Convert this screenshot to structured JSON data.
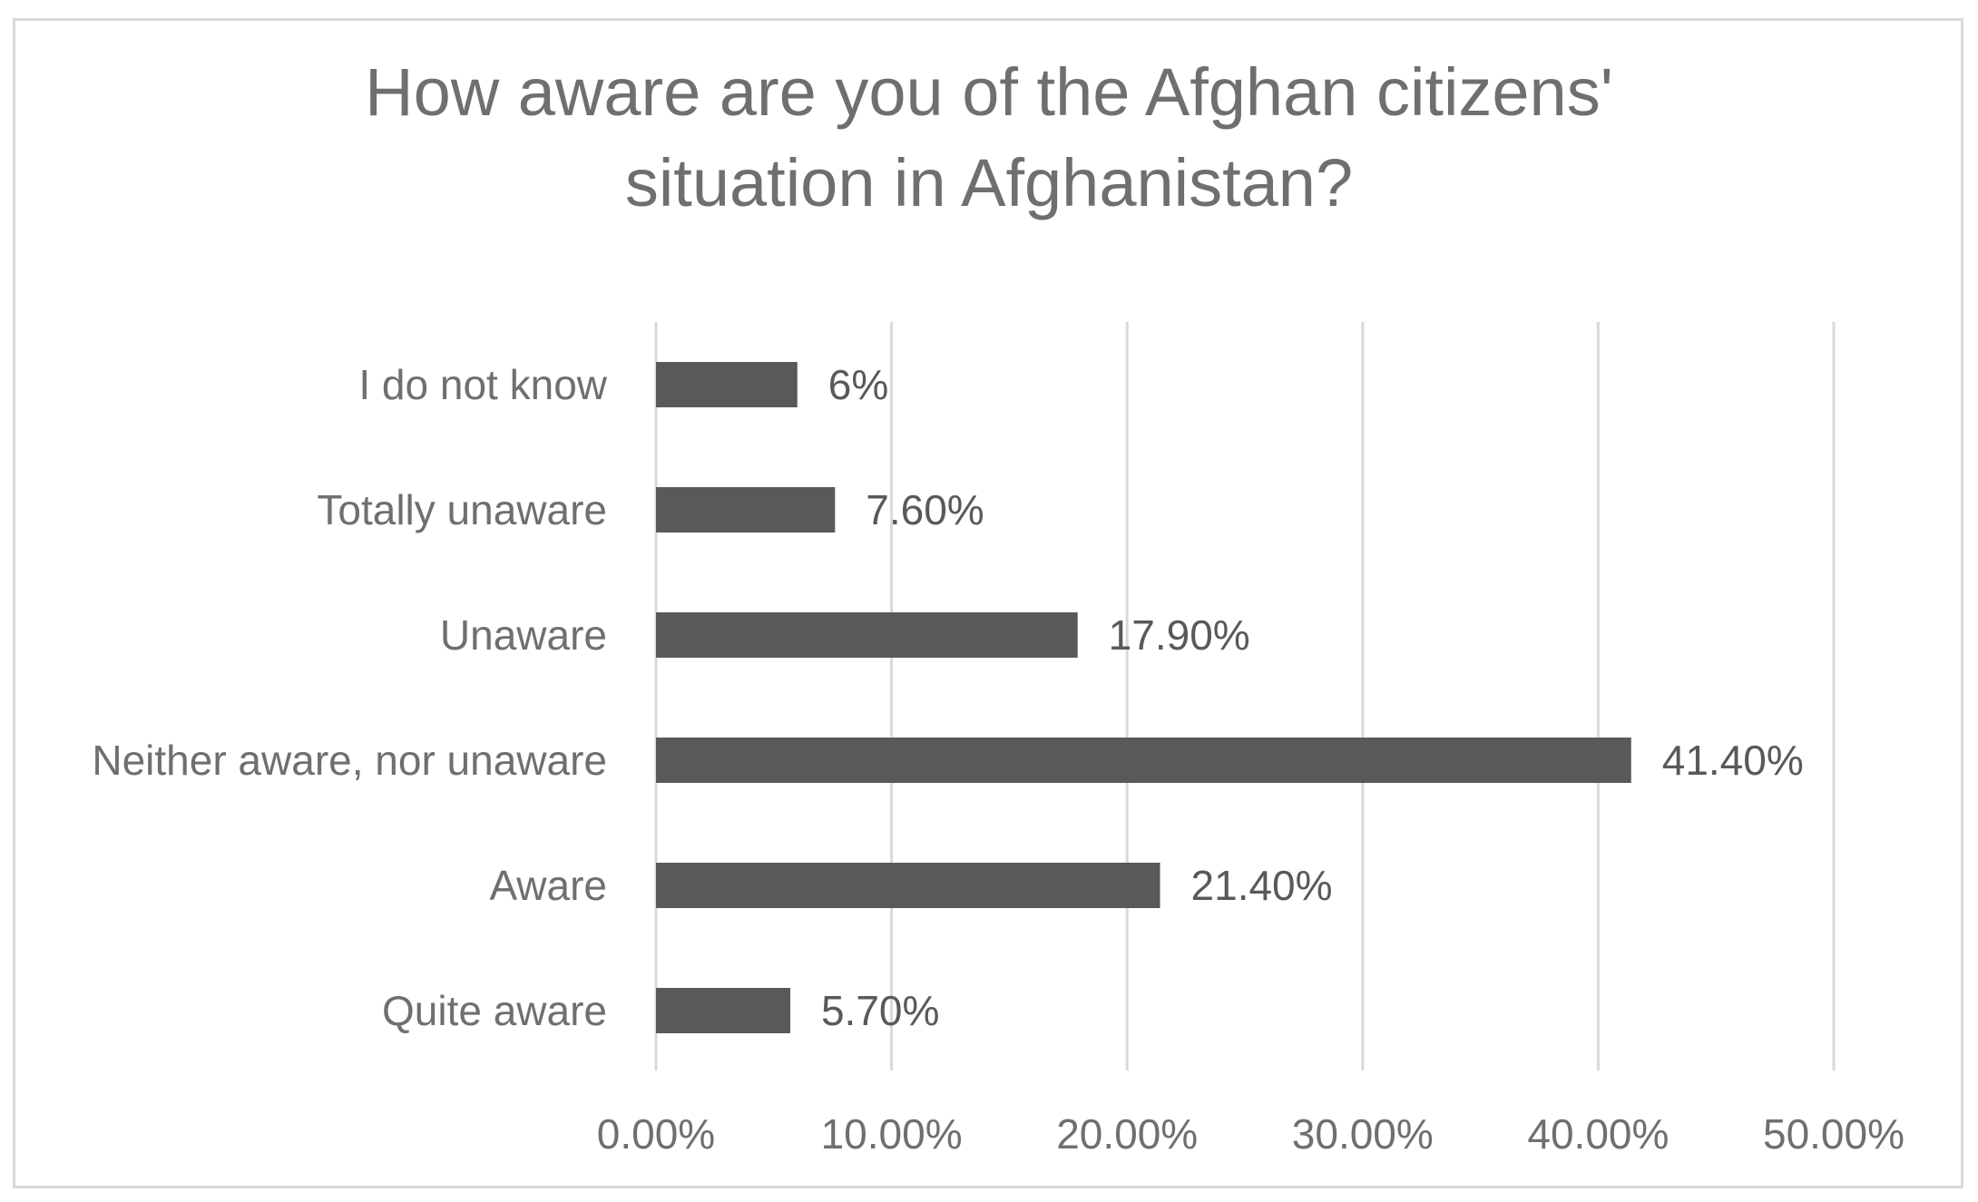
{
  "chart_data": {
    "type": "bar",
    "orientation": "horizontal",
    "title": "How aware are you of the Afghan citizens' situation in Afghanistan?",
    "title_lines": [
      "How aware are you of the Afghan citizens'",
      "situation in Afghanistan?"
    ],
    "categories": [
      "I do not know",
      "Totally unaware",
      "Unaware",
      "Neither aware, nor unaware",
      "Aware",
      "Quite aware"
    ],
    "values": [
      6,
      7.6,
      17.9,
      41.4,
      21.4,
      5.7
    ],
    "data_labels": [
      "6%",
      "7.60%",
      "17.90%",
      "41.40%",
      "21.40%",
      "5.70%"
    ],
    "x_ticks": [
      0,
      10,
      20,
      30,
      40,
      50
    ],
    "x_tick_labels": [
      "0.00%",
      "10.00%",
      "20.00%",
      "30.00%",
      "40.00%",
      "50.00%"
    ],
    "xlim": [
      0,
      50
    ],
    "xlabel": "",
    "ylabel": "",
    "grid": "vertical",
    "legend": "none",
    "bar_color": "#595959",
    "grid_color": "#d9d9d9",
    "text_color": "#6f6f6f"
  }
}
